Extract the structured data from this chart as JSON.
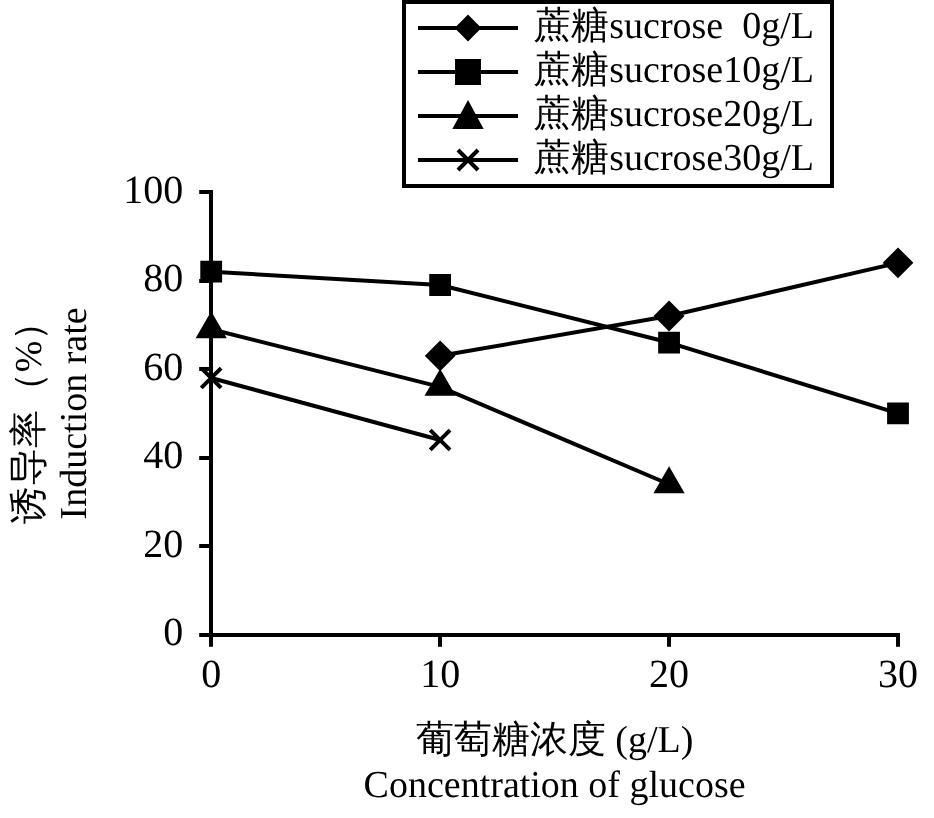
{
  "chart_data": {
    "type": "line",
    "xlabel": "葡萄糖浓度 (g/L)\nConcentration of glucose",
    "ylabel": "诱导率（%）\nInduction rate",
    "x": [
      0,
      10,
      20,
      30
    ],
    "series": [
      {
        "name": "蔗糖sucrose  0g/L",
        "color": "#000000",
        "marker": "diamond",
        "values": [
          null,
          63,
          72,
          84
        ]
      },
      {
        "name": "蔗糖sucrose10g/L",
        "color": "#000000",
        "marker": "square",
        "values": [
          82,
          79,
          66,
          50
        ]
      },
      {
        "name": "蔗糖sucrose20g/L",
        "color": "#000000",
        "marker": "triangle",
        "values": [
          69,
          56,
          34,
          null
        ]
      },
      {
        "name": "蔗糖sucrose30g/L",
        "color": "#000000",
        "marker": "cross",
        "values": [
          58,
          44,
          null,
          null
        ]
      }
    ],
    "xlim": [
      0,
      30
    ],
    "xticks": [
      0,
      10,
      20,
      30
    ],
    "ylim": [
      0,
      100
    ],
    "yticks": [
      0,
      20,
      40,
      60,
      80,
      100
    ],
    "grid": false,
    "legend": "top right",
    "line_style": "solid"
  }
}
